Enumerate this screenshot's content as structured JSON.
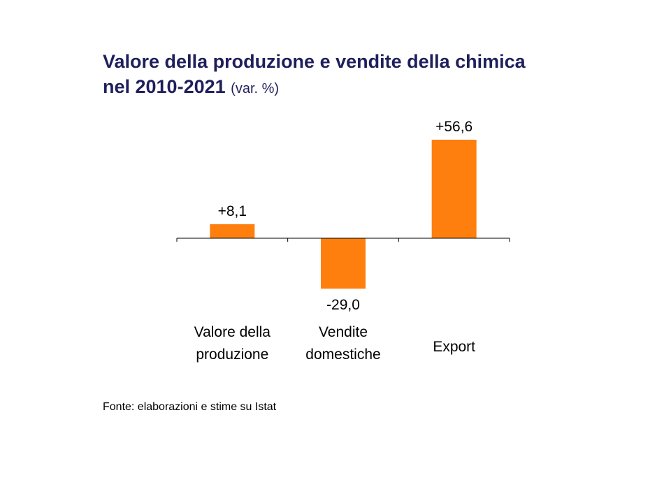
{
  "chart_data": {
    "type": "bar",
    "title_line1": "Valore della produzione e vendite della chimica",
    "title_line2": "nel 2010-2021",
    "subtitle": "(var. %)",
    "categories": [
      [
        "Valore della",
        "produzione"
      ],
      [
        "Vendite",
        "domestiche"
      ],
      [
        "Export"
      ]
    ],
    "values": [
      8.1,
      -29.0,
      56.6
    ],
    "value_labels": [
      "+8,1",
      "-29,0",
      "+56,6"
    ],
    "ylim": [
      -29.0,
      56.6
    ],
    "bar_color": "#ff7f0e",
    "title_color": "#1f1f5c"
  },
  "footer": {
    "source": "Fonte: elaborazioni e stime su Istat"
  }
}
